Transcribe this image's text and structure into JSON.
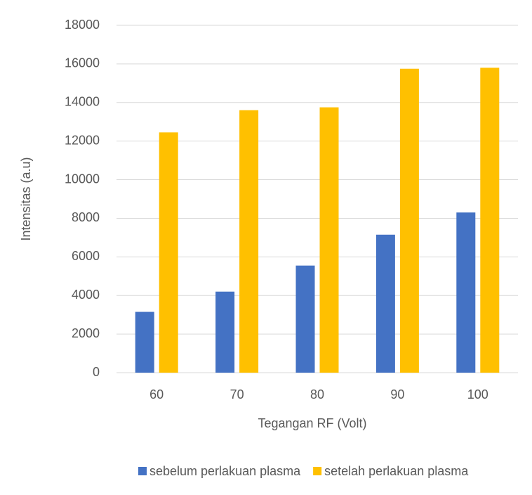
{
  "chart_data": {
    "type": "bar",
    "y_label": "Intensitas (a.u)",
    "x_label": "Tegangan RF (Volt)",
    "categories": [
      "60",
      "70",
      "80",
      "90",
      "100"
    ],
    "series": [
      {
        "name": "sebelum perlakuan plasma",
        "color": "#4472c4",
        "values": [
          3150,
          4200,
          5550,
          7150,
          8300
        ]
      },
      {
        "name": "setelah perlakuan plasma",
        "color": "#ffc000",
        "values": [
          12450,
          13600,
          13750,
          15750,
          15800
        ]
      }
    ],
    "ylim": [
      0,
      18000
    ],
    "yticks": [
      0,
      2000,
      4000,
      6000,
      8000,
      10000,
      12000,
      14000,
      16000,
      18000
    ],
    "grid": true,
    "legend": "bottom"
  }
}
